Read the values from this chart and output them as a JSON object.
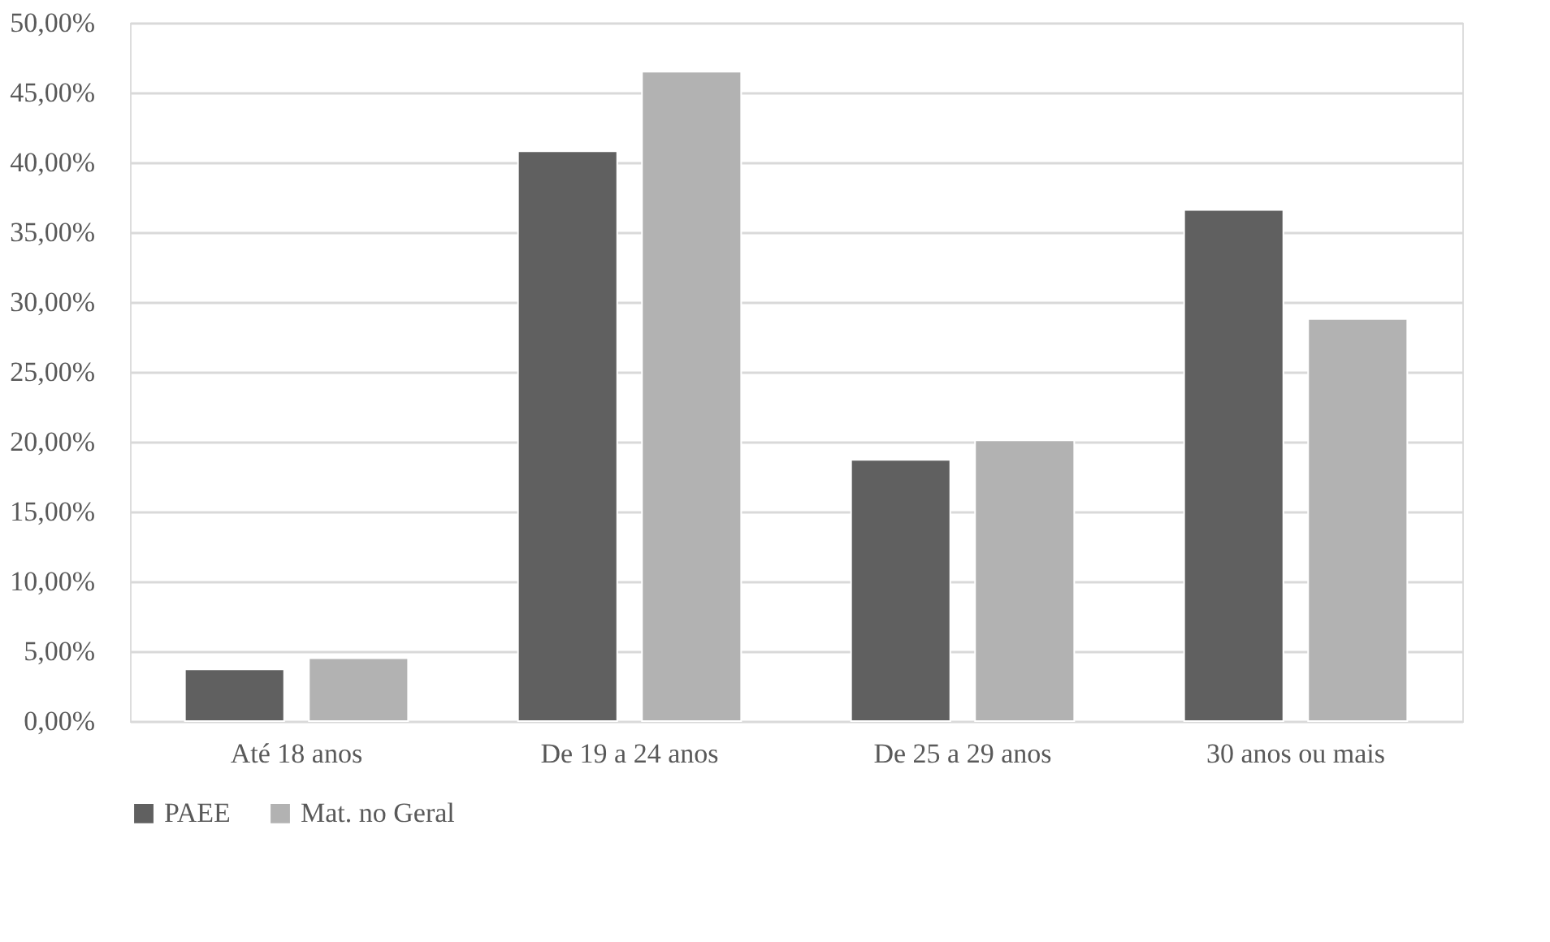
{
  "chart_data": {
    "type": "bar",
    "categories": [
      "Até 18 anos",
      "De 19 a 24 anos",
      "De 25 a 29 anos",
      "30 anos ou mais"
    ],
    "series": [
      {
        "name": "PAEE",
        "color": "#606060",
        "values": [
          3.7,
          40.8,
          18.7,
          36.6
        ]
      },
      {
        "name": "Mat. no Geral",
        "color": "#b2b2b2",
        "values": [
          4.5,
          46.5,
          20.1,
          28.8
        ]
      }
    ],
    "ylim": [
      0,
      50
    ],
    "yticks": [
      {
        "value": 0,
        "label": "0,00%"
      },
      {
        "value": 5,
        "label": "5,00%"
      },
      {
        "value": 10,
        "label": "10,00%"
      },
      {
        "value": 15,
        "label": "15,00%"
      },
      {
        "value": 20,
        "label": "20,00%"
      },
      {
        "value": 25,
        "label": "25,00%"
      },
      {
        "value": 30,
        "label": "30,00%"
      },
      {
        "value": 35,
        "label": "35,00%"
      },
      {
        "value": 40,
        "label": "40,00%"
      },
      {
        "value": 45,
        "label": "45,00%"
      },
      {
        "value": 50,
        "label": "50,00%"
      }
    ],
    "grid": "y",
    "legend": "bottom"
  }
}
